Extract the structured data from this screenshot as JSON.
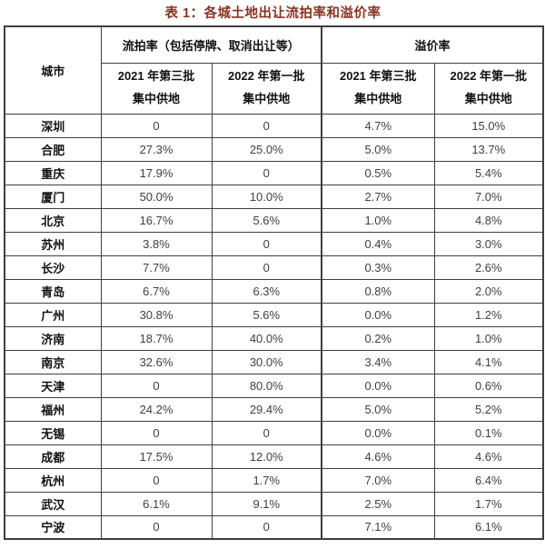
{
  "title": "表 1：各城土地出让流拍率和溢价率",
  "colors": {
    "title_text": "#8a3220",
    "border": "#3f3f3f",
    "header_text": "#111111",
    "city_text": "#111111",
    "value_text": "#404040",
    "background": "#ffffff"
  },
  "table": {
    "city_header": "城市",
    "group_headers": [
      {
        "label": "流拍率（包括停牌、取消出让等）"
      },
      {
        "label": "溢价率"
      }
    ],
    "sub_headers": [
      {
        "line1": "2021 年第三批",
        "line2": "集中供地"
      },
      {
        "line1": "2022 年第一批",
        "line2": "集中供地"
      },
      {
        "line1": "2021 年第三批",
        "line2": "集中供地"
      },
      {
        "line1": "2022 年第一批",
        "line2": "集中供地"
      }
    ],
    "rows": [
      {
        "city": "深圳",
        "values": [
          "0",
          "0",
          "4.7%",
          "15.0%"
        ]
      },
      {
        "city": "合肥",
        "values": [
          "27.3%",
          "25.0%",
          "5.0%",
          "13.7%"
        ]
      },
      {
        "city": "重庆",
        "values": [
          "17.9%",
          "0",
          "0.5%",
          "5.4%"
        ]
      },
      {
        "city": "厦门",
        "values": [
          "50.0%",
          "10.0%",
          "2.7%",
          "7.0%"
        ]
      },
      {
        "city": "北京",
        "values": [
          "16.7%",
          "5.6%",
          "1.0%",
          "4.8%"
        ]
      },
      {
        "city": "苏州",
        "values": [
          "3.8%",
          "0",
          "0.4%",
          "3.0%"
        ]
      },
      {
        "city": "长沙",
        "values": [
          "7.7%",
          "0",
          "0.3%",
          "2.6%"
        ]
      },
      {
        "city": "青岛",
        "values": [
          "6.7%",
          "6.3%",
          "0.8%",
          "2.0%"
        ]
      },
      {
        "city": "广州",
        "values": [
          "30.8%",
          "5.6%",
          "0.0%",
          "1.2%"
        ]
      },
      {
        "city": "济南",
        "values": [
          "18.7%",
          "40.0%",
          "0.2%",
          "1.0%"
        ]
      },
      {
        "city": "南京",
        "values": [
          "32.6%",
          "30.0%",
          "3.4%",
          "4.1%"
        ]
      },
      {
        "city": "天津",
        "values": [
          "0",
          "80.0%",
          "0.0%",
          "0.6%"
        ]
      },
      {
        "city": "福州",
        "values": [
          "24.2%",
          "29.4%",
          "5.0%",
          "5.2%"
        ]
      },
      {
        "city": "无锡",
        "values": [
          "0",
          "0",
          "0.0%",
          "0.1%"
        ]
      },
      {
        "city": "成都",
        "values": [
          "17.5%",
          "12.0%",
          "4.6%",
          "4.6%"
        ]
      },
      {
        "city": "杭州",
        "values": [
          "0",
          "1.7%",
          "7.0%",
          "6.4%"
        ]
      },
      {
        "city": "武汉",
        "values": [
          "6.1%",
          "9.1%",
          "2.5%",
          "1.7%"
        ]
      },
      {
        "city": "宁波",
        "values": [
          "0",
          "0",
          "7.1%",
          "6.1%"
        ]
      }
    ]
  }
}
